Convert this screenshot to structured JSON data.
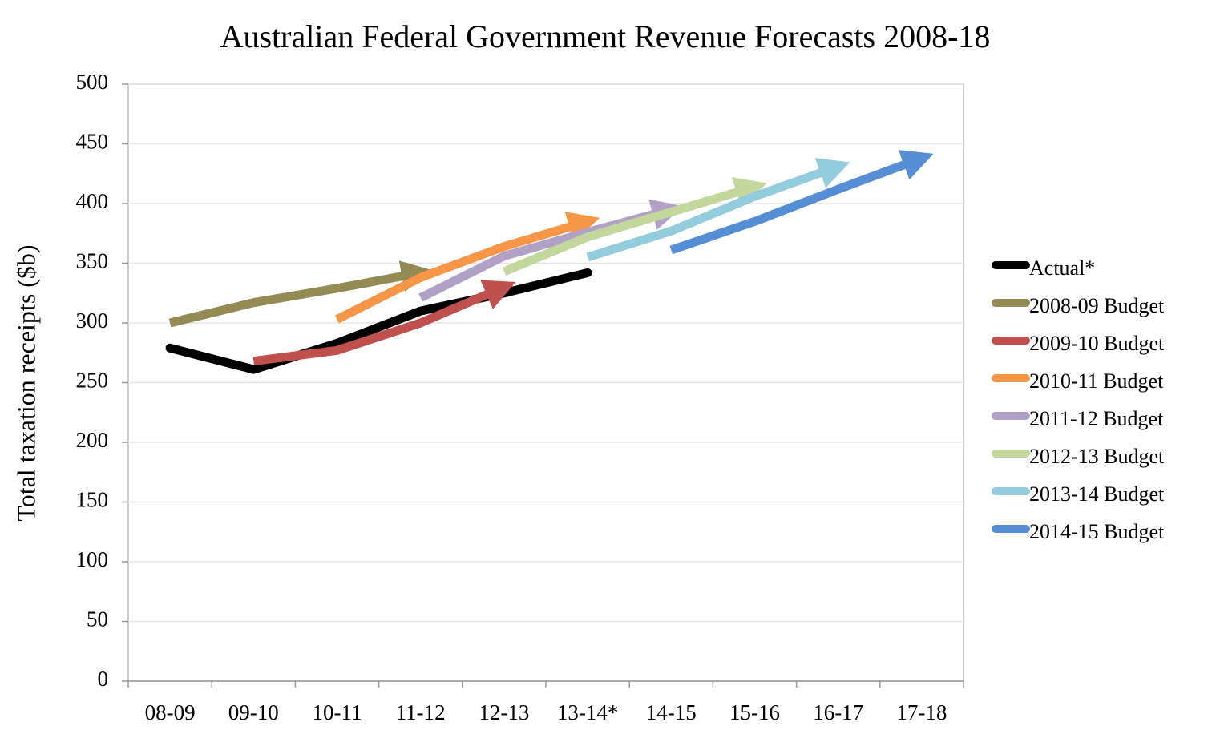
{
  "chart_data": {
    "type": "line",
    "title": "Australian Federal Government Revenue Forecasts 2008-18",
    "y_label": "Total taxation receipts ($b)",
    "categories": [
      "08-09",
      "09-10",
      "10-11",
      "11-12",
      "12-13",
      "13-14*",
      "14-15",
      "15-16",
      "16-17",
      "17-18"
    ],
    "ylim": [
      0,
      500
    ],
    "yticks": [
      0,
      50,
      100,
      150,
      200,
      250,
      300,
      350,
      400,
      450,
      500
    ],
    "grid": true,
    "legend": "right",
    "series": [
      {
        "name": "Actual*",
        "color": "#000000",
        "arrow": false,
        "values": [
          279,
          261,
          283,
          310,
          325,
          342,
          null,
          null,
          null,
          null
        ]
      },
      {
        "name": "2008-09 Budget",
        "color": "#948a54",
        "arrow": true,
        "values": [
          300,
          317,
          329,
          342,
          null,
          null,
          null,
          null,
          null,
          null
        ]
      },
      {
        "name": "2009-10 Budget",
        "color": "#c0504d",
        "arrow": true,
        "values": [
          null,
          268,
          277,
          300,
          330,
          null,
          null,
          null,
          null,
          null
        ]
      },
      {
        "name": "2010-11 Budget",
        "color": "#f79646",
        "arrow": true,
        "values": [
          null,
          null,
          303,
          338,
          364,
          385,
          null,
          null,
          null,
          null
        ]
      },
      {
        "name": "2011-12 Budget",
        "color": "#b2a1c7",
        "arrow": true,
        "values": [
          null,
          null,
          null,
          321,
          356,
          376,
          395,
          null,
          null,
          null
        ]
      },
      {
        "name": "2012-13 Budget",
        "color": "#c3d69b",
        "arrow": true,
        "values": [
          null,
          null,
          null,
          null,
          343,
          372,
          393,
          414,
          null,
          null
        ]
      },
      {
        "name": "2013-14 Budget",
        "color": "#93cddd",
        "arrow": true,
        "values": [
          null,
          null,
          null,
          null,
          null,
          355,
          377,
          406,
          431,
          null
        ]
      },
      {
        "name": "2014-15 Budget",
        "color": "#558ed5",
        "arrow": true,
        "values": [
          null,
          null,
          null,
          null,
          null,
          null,
          361,
          385,
          412,
          438
        ]
      }
    ]
  }
}
